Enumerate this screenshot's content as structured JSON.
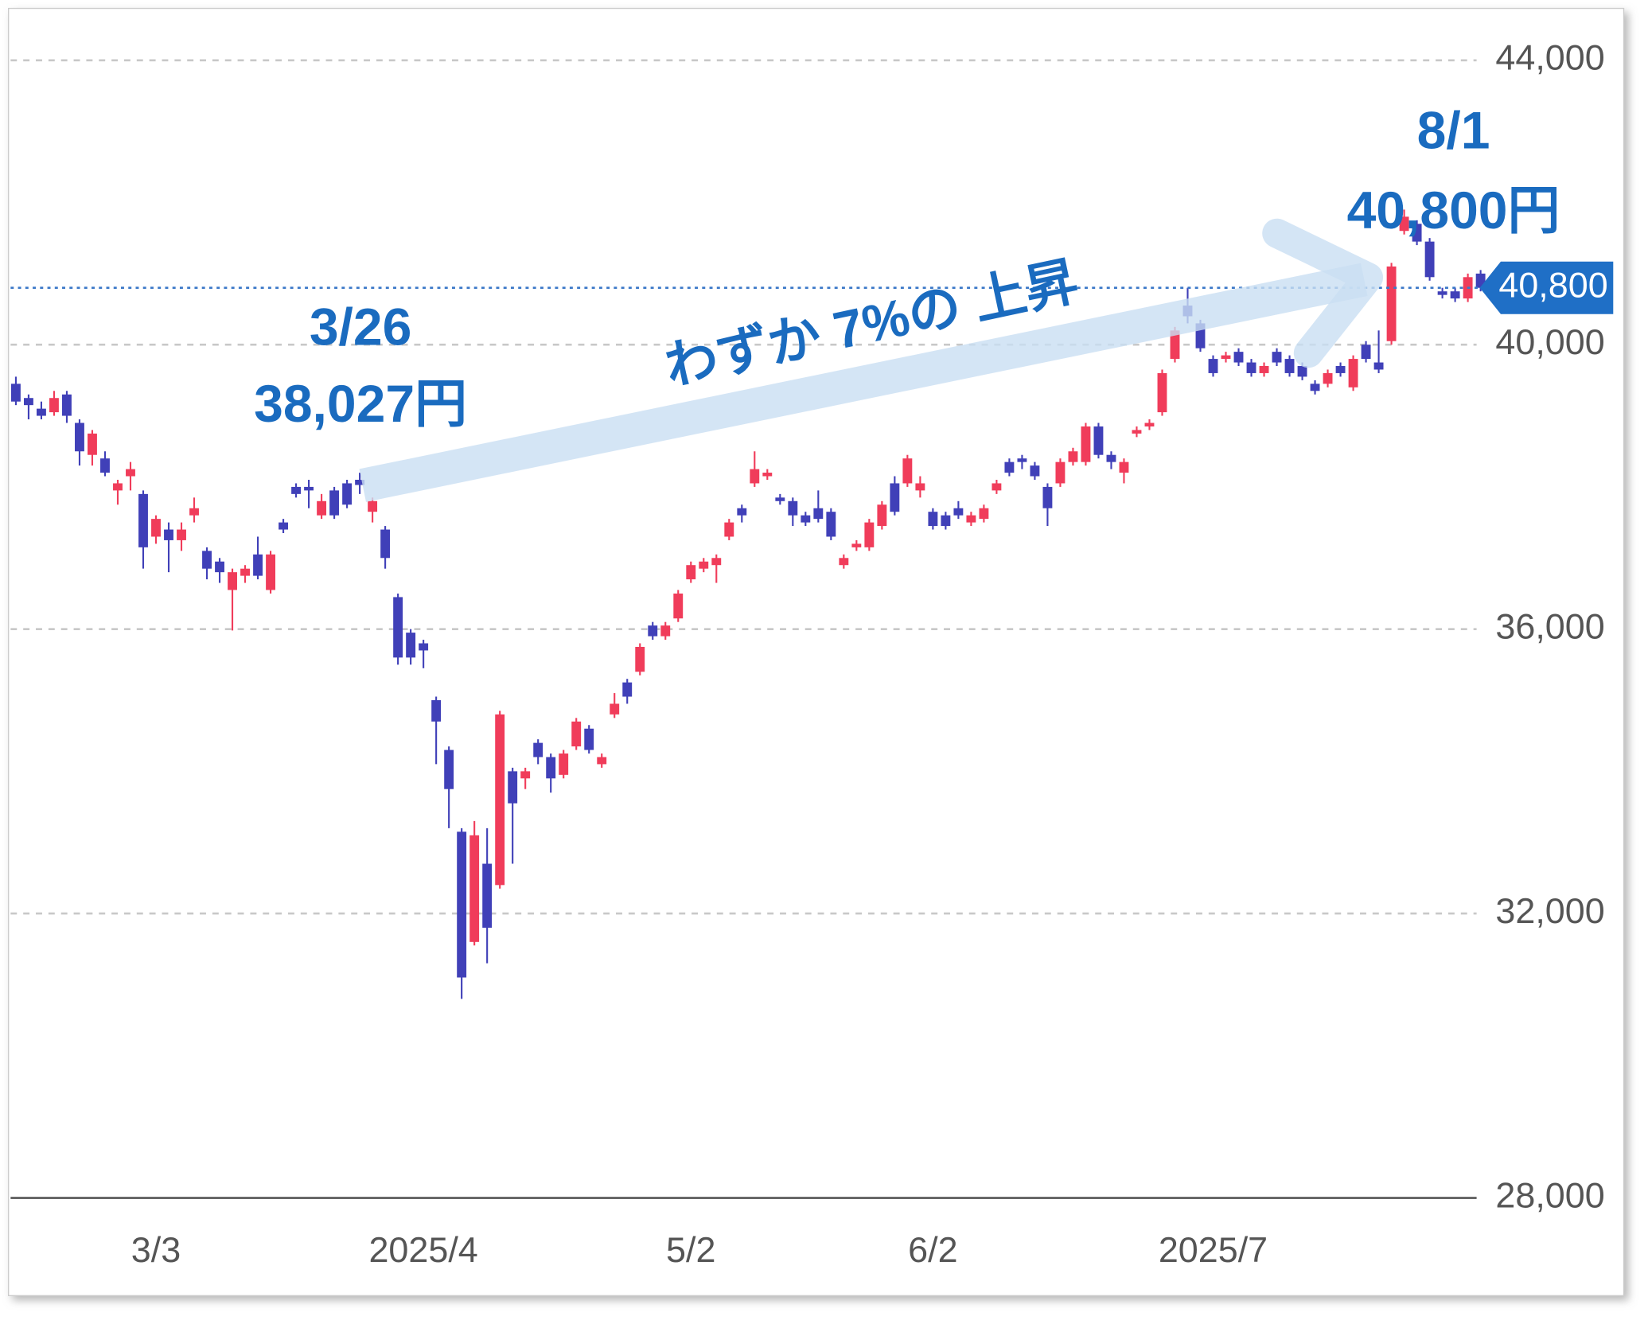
{
  "chart_data": {
    "type": "candlestick",
    "categories": [
      null,
      null,
      null,
      null,
      null,
      null,
      null,
      null,
      null,
      null,
      null,
      "3/3",
      null,
      null,
      null,
      null,
      null,
      null,
      null,
      null,
      null,
      null,
      null,
      null,
      null,
      null,
      null,
      null,
      null,
      null,
      null,
      null,
      "2025/4",
      null,
      null,
      null,
      null,
      null,
      null,
      null,
      null,
      null,
      null,
      null,
      null,
      null,
      null,
      null,
      null,
      null,
      null,
      null,
      null,
      "5/2",
      null,
      null,
      null,
      null,
      null,
      null,
      null,
      null,
      null,
      null,
      null,
      null,
      null,
      null,
      null,
      null,
      null,
      null,
      "6/2",
      null,
      null,
      null,
      null,
      null,
      null,
      null,
      null,
      null,
      null,
      null,
      null,
      null,
      null,
      null,
      null,
      null,
      null,
      null,
      null,
      null,
      "2025/7",
      null,
      null,
      null,
      null,
      null,
      null,
      null,
      null,
      null,
      null,
      null,
      null,
      null,
      null,
      null,
      null,
      null,
      null,
      null,
      null,
      null
    ],
    "open": [
      39450,
      39250,
      39100,
      39050,
      39300,
      38900,
      38450,
      38400,
      37950,
      38150,
      37900,
      37300,
      37400,
      37250,
      37600,
      37100,
      36950,
      36550,
      36750,
      37050,
      36550,
      37500,
      38000,
      38000,
      37600,
      37950,
      38050,
      38100,
      37650,
      37400,
      36450,
      35950,
      35800,
      35000,
      34300,
      33150,
      31600,
      32700,
      32400,
      34000,
      33900,
      34400,
      34200,
      33950,
      34350,
      34600,
      34100,
      34800,
      35250,
      35400,
      36050,
      35900,
      36150,
      36700,
      36850,
      36900,
      37300,
      37700,
      38050,
      38150,
      37850,
      37800,
      37600,
      37700,
      37650,
      36900,
      37150,
      37150,
      37450,
      38050,
      38050,
      37950,
      37650,
      37600,
      37700,
      37500,
      37550,
      37950,
      38350,
      38400,
      38300,
      38000,
      38050,
      38350,
      38350,
      38850,
      38450,
      38200,
      38750,
      38850,
      39050,
      39800,
      40550,
      40300,
      39800,
      39800,
      39900,
      39750,
      39600,
      39900,
      39800,
      39700,
      39450,
      39450,
      39700,
      39400,
      40000,
      39750,
      40050,
      41600,
      41700,
      41450,
      40750,
      40750,
      40650,
      41000
    ],
    "high": [
      39550,
      39300,
      39200,
      39350,
      39350,
      38950,
      38800,
      38500,
      38100,
      38350,
      37950,
      37600,
      37500,
      37500,
      37850,
      37150,
      37000,
      36850,
      36900,
      37300,
      37100,
      37550,
      38050,
      38100,
      37900,
      38000,
      38100,
      38200,
      37850,
      37450,
      36500,
      36000,
      35850,
      35050,
      34350,
      33200,
      33300,
      33200,
      34850,
      34050,
      34050,
      34450,
      34250,
      34300,
      34750,
      34650,
      34250,
      35100,
      35300,
      35800,
      36100,
      36100,
      36550,
      36950,
      37000,
      37050,
      37550,
      37750,
      38500,
      38250,
      37900,
      37850,
      37650,
      37950,
      37700,
      37050,
      37250,
      37550,
      37800,
      38150,
      38450,
      38150,
      37700,
      37650,
      37800,
      37650,
      37750,
      38100,
      38400,
      38450,
      38350,
      38050,
      38400,
      38550,
      38900,
      38900,
      38500,
      38400,
      38850,
      38950,
      39650,
      40250,
      40800,
      40350,
      39850,
      39900,
      39950,
      39800,
      39750,
      39950,
      39850,
      39750,
      39500,
      39650,
      39750,
      39850,
      40050,
      40200,
      41150,
      41900,
      41750,
      41500,
      40800,
      40800,
      41000,
      41050
    ],
    "low": [
      39150,
      38950,
      38950,
      39000,
      38900,
      38300,
      38300,
      38150,
      37750,
      37950,
      36850,
      37200,
      36800,
      37100,
      37500,
      36700,
      36650,
      35980,
      36650,
      36700,
      36500,
      37350,
      37850,
      37700,
      37550,
      37550,
      37700,
      37900,
      37500,
      36850,
      35500,
      35500,
      35450,
      34100,
      33200,
      30800,
      31550,
      31300,
      32350,
      32700,
      33750,
      34100,
      33700,
      33900,
      34300,
      34250,
      34050,
      34750,
      34950,
      35350,
      35850,
      35850,
      36100,
      36650,
      36800,
      36650,
      37250,
      37500,
      38000,
      38100,
      37750,
      37450,
      37450,
      37500,
      37250,
      36850,
      37100,
      37100,
      37400,
      37600,
      38000,
      37850,
      37400,
      37400,
      37550,
      37450,
      37500,
      37900,
      38150,
      38250,
      38100,
      37450,
      38000,
      38300,
      38300,
      38400,
      38250,
      38050,
      38700,
      38800,
      39000,
      39750,
      40300,
      39900,
      39550,
      39750,
      39700,
      39550,
      39550,
      39700,
      39550,
      39500,
      39300,
      39400,
      39550,
      39350,
      39750,
      39600,
      40000,
      41550,
      41400,
      40900,
      40650,
      40600,
      40600,
      40750
    ],
    "close": [
      39200,
      39150,
      39000,
      39250,
      39000,
      38500,
      38750,
      38200,
      38050,
      38250,
      37150,
      37550,
      37250,
      37400,
      37700,
      36850,
      36800,
      36800,
      36850,
      36750,
      37050,
      37400,
      37900,
      37950,
      37800,
      37600,
      37750,
      38027,
      37800,
      37000,
      35600,
      35600,
      35700,
      34700,
      33750,
      31100,
      33100,
      31800,
      34800,
      33550,
      34000,
      34200,
      33900,
      34250,
      34700,
      34300,
      34200,
      34950,
      35050,
      35750,
      35900,
      36050,
      36500,
      36900,
      36950,
      37000,
      37500,
      37600,
      38250,
      38200,
      37800,
      37600,
      37500,
      37550,
      37300,
      37000,
      37200,
      37500,
      37750,
      37650,
      38400,
      38050,
      37450,
      37450,
      37600,
      37600,
      37700,
      38050,
      38200,
      38350,
      38150,
      37700,
      38350,
      38500,
      38850,
      38450,
      38350,
      38350,
      38800,
      38900,
      39600,
      40200,
      40400,
      39950,
      39600,
      39850,
      39750,
      39600,
      39700,
      39750,
      39600,
      39550,
      39350,
      39600,
      39600,
      39800,
      39800,
      39650,
      41100,
      41800,
      41450,
      40950,
      40700,
      40650,
      40950,
      40800
    ],
    "up_color": "#f03c5a",
    "down_color": "#4040b8",
    "ylim": [
      28000,
      44700
    ],
    "yticks": [
      {
        "value": 28000,
        "label": "28,000"
      },
      {
        "value": 32000,
        "label": "32,000"
      },
      {
        "value": 36000,
        "label": "36,000"
      },
      {
        "value": 40000,
        "label": "40,000"
      },
      {
        "value": 44000,
        "label": "44,000"
      }
    ],
    "grid": true,
    "last_price": {
      "value": 40800,
      "label": "40,800"
    },
    "annotations": [
      "3/26",
      "38,027円",
      "わずか 7%の 上昇",
      "8/1",
      "40,800円"
    ]
  }
}
